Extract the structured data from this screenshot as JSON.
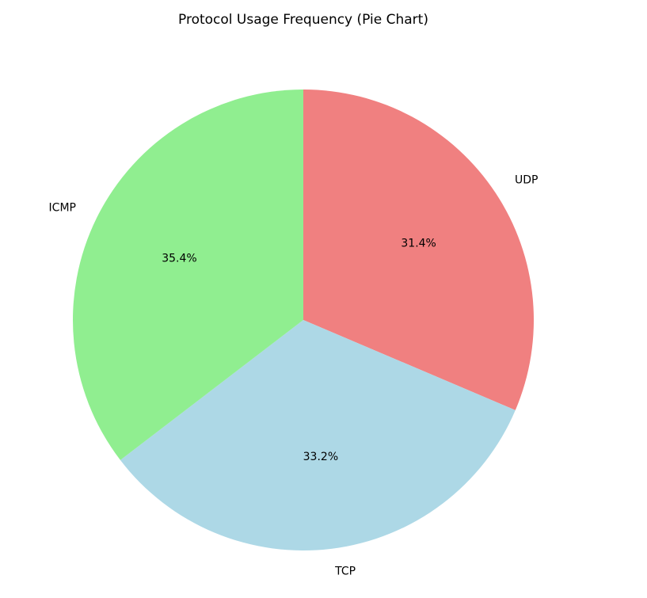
{
  "chart_data": {
    "type": "pie",
    "title": "Protocol Usage Frequency (Pie Chart)",
    "start_angle_deg": 90,
    "direction": "clockwise",
    "slices": [
      {
        "label": "UDP",
        "value": 31.4,
        "pct_label": "31.4%",
        "color": "#f08080"
      },
      {
        "label": "TCP",
        "value": 33.2,
        "pct_label": "33.2%",
        "color": "#add8e6"
      },
      {
        "label": "ICMP",
        "value": 35.4,
        "pct_label": "35.4%",
        "color": "#90ee90"
      }
    ]
  }
}
